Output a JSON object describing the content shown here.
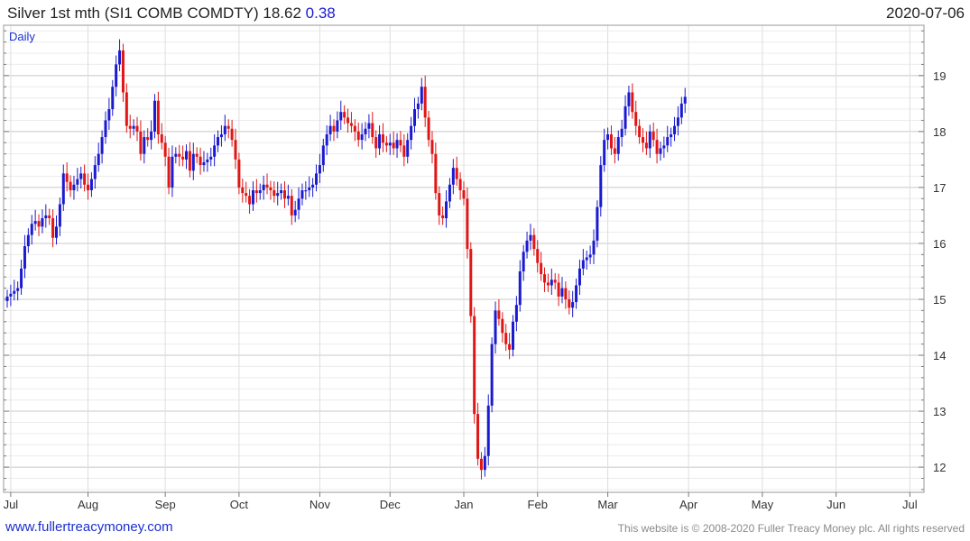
{
  "header": {
    "title": "Silver 1st mth (SI1 COMB COMDTY) 18.62",
    "change": "0.38",
    "date": "2020-07-06"
  },
  "footer": {
    "link": "www.fullertreacymoney.com",
    "copyright": "This website is © 2008-2020 Fuller Treacy Money plc. All rights reserved"
  },
  "colors": {
    "up": "#1a1ad0",
    "down": "#e01616",
    "grid": "#d8d8d8",
    "axis": "#808080"
  },
  "chart_data": {
    "type": "candlestick",
    "period_label": "Daily",
    "ylim": [
      11.55,
      19.9
    ],
    "yticks": [
      12,
      13,
      14,
      15,
      16,
      17,
      18,
      19
    ],
    "xlim": [
      0,
      260
    ],
    "xticks": [
      {
        "label": "Jul",
        "pos": 1
      },
      {
        "label": "Aug",
        "pos": 23
      },
      {
        "label": "Sep",
        "pos": 45
      },
      {
        "label": "Oct",
        "pos": 66
      },
      {
        "label": "Nov",
        "pos": 89
      },
      {
        "label": "Dec",
        "pos": 109
      },
      {
        "label": "Jan",
        "pos": 130
      },
      {
        "label": "Feb",
        "pos": 151
      },
      {
        "label": "Mar",
        "pos": 171
      },
      {
        "label": "Apr",
        "pos": 194
      },
      {
        "label": "May",
        "pos": 215
      },
      {
        "label": "Jun",
        "pos": 236
      },
      {
        "label": "Jul",
        "pos": 257
      }
    ],
    "closes": [
      15.05,
      15.1,
      15.15,
      15.2,
      15.55,
      15.95,
      16.15,
      16.35,
      16.4,
      16.3,
      16.45,
      16.5,
      16.45,
      16.1,
      16.3,
      16.7,
      17.25,
      17.1,
      16.95,
      17.05,
      17.15,
      17.25,
      17.05,
      16.95,
      17.15,
      17.4,
      17.6,
      17.9,
      18.2,
      18.4,
      18.8,
      19.2,
      19.45,
      18.7,
      18.1,
      18.05,
      18.1,
      18.0,
      17.6,
      17.9,
      17.85,
      18.0,
      18.55,
      17.95,
      17.8,
      17.55,
      17.0,
      17.55,
      17.6,
      17.55,
      17.5,
      17.65,
      17.3,
      17.6,
      17.55,
      17.4,
      17.45,
      17.5,
      17.55,
      17.75,
      17.9,
      17.95,
      18.1,
      18.05,
      17.85,
      17.5,
      17.0,
      16.9,
      16.85,
      16.7,
      16.95,
      16.9,
      16.95,
      17.05,
      17.0,
      16.95,
      16.85,
      16.9,
      16.95,
      16.8,
      16.85,
      16.5,
      16.6,
      16.8,
      16.95,
      16.95,
      17.0,
      17.05,
      17.25,
      17.4,
      17.75,
      17.95,
      18.1,
      18.0,
      18.2,
      18.35,
      18.25,
      18.15,
      18.1,
      18.0,
      17.85,
      17.95,
      18.05,
      18.15,
      17.9,
      17.7,
      17.95,
      17.8,
      17.75,
      17.8,
      17.7,
      17.85,
      17.75,
      17.55,
      17.85,
      18.1,
      18.4,
      18.5,
      18.8,
      18.25,
      17.85,
      17.6,
      16.9,
      16.5,
      16.45,
      16.75,
      17.05,
      17.35,
      17.15,
      16.95,
      16.8,
      15.9,
      14.7,
      12.95,
      12.15,
      11.95,
      12.2,
      13.1,
      14.2,
      14.8,
      14.65,
      14.4,
      14.2,
      14.1,
      14.6,
      14.9,
      15.5,
      15.85,
      16.05,
      16.15,
      15.9,
      15.65,
      15.45,
      15.3,
      15.25,
      15.35,
      15.3,
      15.05,
      15.2,
      15.0,
      14.85,
      14.95,
      15.25,
      15.55,
      15.7,
      15.75,
      15.8,
      16.05,
      16.65,
      17.4,
      17.85,
      17.95,
      17.7,
      17.6,
      17.9,
      18.05,
      18.45,
      18.7,
      18.35,
      18.1,
      17.9,
      17.8,
      17.7,
      18.0,
      17.85,
      17.6,
      17.7,
      17.75,
      17.9,
      17.95,
      18.1,
      18.25,
      18.5,
      18.62
    ]
  }
}
